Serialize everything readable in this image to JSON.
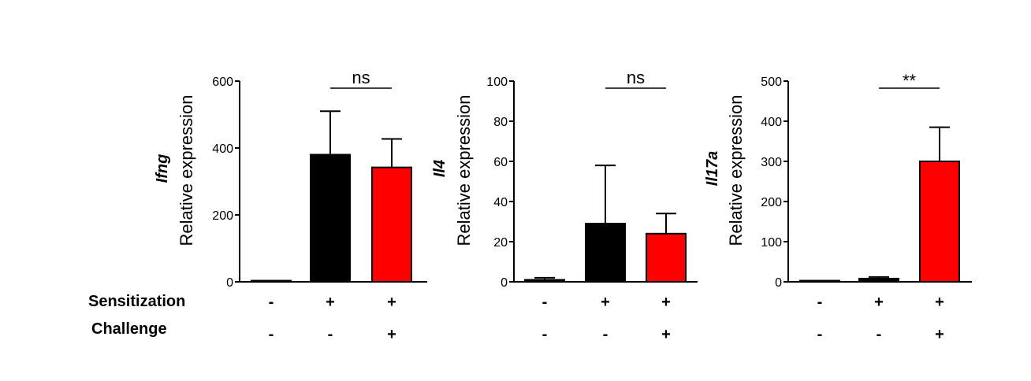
{
  "colors": {
    "black": "#000000",
    "red": "#ff0000",
    "axis": "#000000"
  },
  "row_labels": {
    "sensitization": "Sensitization",
    "challenge": "Challenge"
  },
  "conditions": {
    "sensitization": [
      "-",
      "+",
      "+"
    ],
    "challenge": [
      "-",
      "-",
      "+"
    ]
  },
  "chart_data": [
    {
      "type": "bar",
      "title": "Ifng",
      "gene": "Ifng",
      "ylabel": "Relative expression",
      "ylim": [
        0,
        600
      ],
      "yticks": [
        0,
        200,
        400,
        600
      ],
      "categories": [
        "- / -",
        "+ / -",
        "+ / +"
      ],
      "values": [
        1,
        380,
        342
      ],
      "errors": [
        0,
        130,
        85
      ],
      "bar_colors": [
        "#000000",
        "#000000",
        "#ff0000"
      ],
      "significance": {
        "label": "ns",
        "between": [
          1,
          2
        ]
      }
    },
    {
      "type": "bar",
      "title": "Il4",
      "gene": "Il4",
      "ylabel": "Relative expression",
      "ylim": [
        0,
        100
      ],
      "yticks": [
        0,
        20,
        40,
        60,
        80,
        100
      ],
      "categories": [
        "- / -",
        "+ / -",
        "+ / +"
      ],
      "values": [
        1,
        29,
        24
      ],
      "errors": [
        1,
        29,
        10
      ],
      "bar_colors": [
        "#000000",
        "#000000",
        "#ff0000"
      ],
      "significance": {
        "label": "ns",
        "between": [
          1,
          2
        ]
      }
    },
    {
      "type": "bar",
      "title": "Il17a",
      "gene": "Il17a",
      "ylabel": "Relative expression",
      "ylim": [
        0,
        500
      ],
      "yticks": [
        0,
        100,
        200,
        300,
        400,
        500
      ],
      "categories": [
        "- / -",
        "+ / -",
        "+ / +"
      ],
      "values": [
        1,
        8,
        300
      ],
      "errors": [
        0,
        4,
        85
      ],
      "bar_colors": [
        "#000000",
        "#000000",
        "#ff0000"
      ],
      "significance": {
        "label": "**",
        "between": [
          1,
          2
        ]
      }
    }
  ]
}
